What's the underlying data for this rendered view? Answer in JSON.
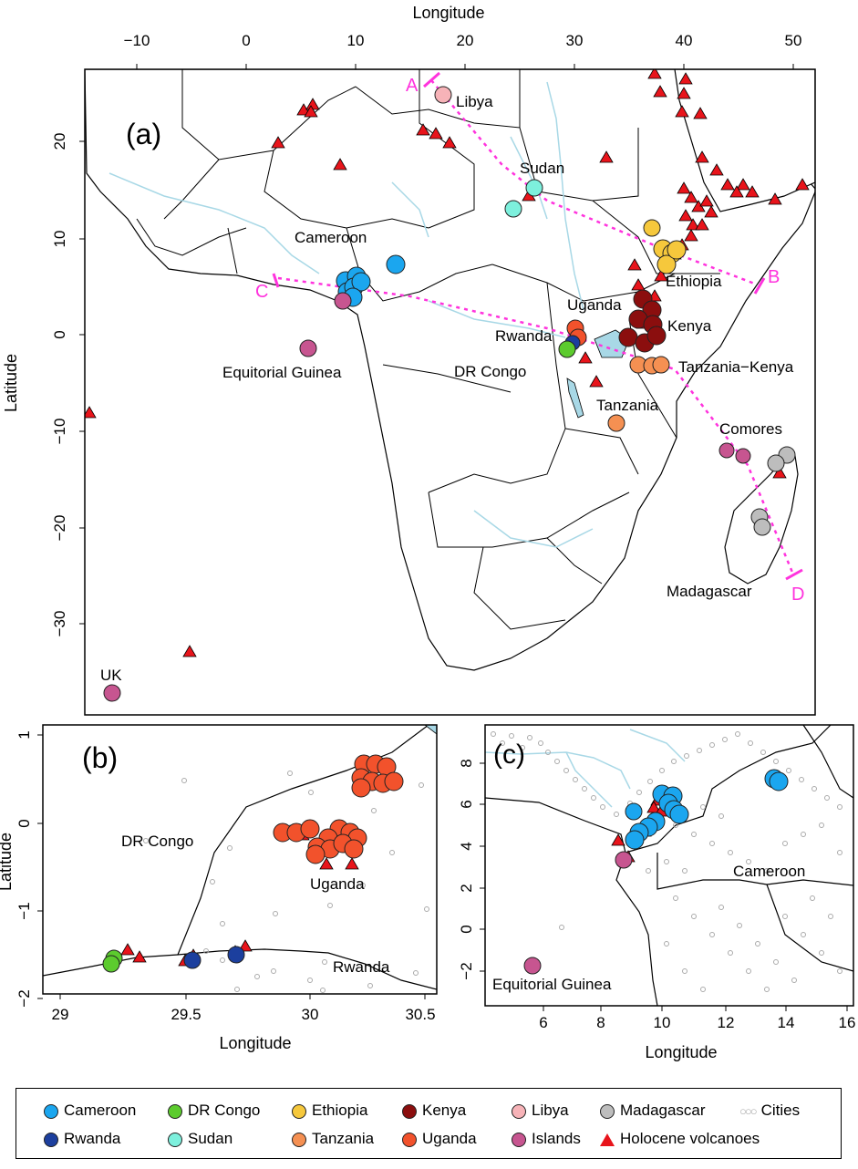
{
  "panel_a": {
    "label": "(a)",
    "x_title": "Longitude",
    "y_title": "Latitude",
    "x_ticks": [
      "−10",
      "0",
      "10",
      "20",
      "30",
      "40",
      "50"
    ],
    "y_ticks": [
      "20",
      "10",
      "0",
      "−10",
      "−20",
      "−30"
    ],
    "place_labels": [
      "Libya",
      "Sudan",
      "Cameroon",
      "Ethiopia",
      "Uganda",
      "Kenya",
      "Rwanda",
      "DR Congo",
      "Equitorial Guinea",
      "Tanzania−Kenya",
      "Tanzania",
      "Comores",
      "Madagascar",
      "UK"
    ],
    "transect_letters": [
      "A",
      "B",
      "C",
      "D"
    ]
  },
  "panel_b": {
    "label": "(b)",
    "x_title": "Longitude",
    "y_title": "Latitude",
    "x_ticks": [
      "29",
      "29.5",
      "30",
      "30.5"
    ],
    "y_ticks": [
      "1",
      "0",
      "−1",
      "−2"
    ],
    "place_labels": [
      "DR Congo",
      "Uganda",
      "Rwanda"
    ]
  },
  "panel_c": {
    "label": "(c)",
    "x_title": "Longitude",
    "x_ticks": [
      "6",
      "8",
      "10",
      "12",
      "14",
      "16"
    ],
    "y_ticks": [
      "8",
      "6",
      "4",
      "2",
      "0",
      "−2"
    ],
    "place_labels": [
      "Cameroon",
      "Equitorial Guinea"
    ]
  },
  "legend": [
    {
      "label": "Cameroon",
      "color": "#1ba6ef",
      "symbol": "circle"
    },
    {
      "label": "DR Congo",
      "color": "#5ccb2e",
      "symbol": "circle"
    },
    {
      "label": "Ethiopia",
      "color": "#f6c83c",
      "symbol": "circle"
    },
    {
      "label": "Kenya",
      "color": "#8b0e0e",
      "symbol": "circle"
    },
    {
      "label": "Libya",
      "color": "#f7b3b8",
      "symbol": "circle"
    },
    {
      "label": "Madagascar",
      "color": "#bdbdbd",
      "symbol": "circle"
    },
    {
      "label": "Cities",
      "color": "#aaaaaa",
      "symbol": "cities"
    },
    {
      "label": "Rwanda",
      "color": "#1c3f9e",
      "symbol": "circle"
    },
    {
      "label": "Sudan",
      "color": "#7df0dd",
      "symbol": "circle"
    },
    {
      "label": "Tanzania",
      "color": "#f59052",
      "symbol": "circle"
    },
    {
      "label": "Uganda",
      "color": "#f2522c",
      "symbol": "circle"
    },
    {
      "label": "Islands",
      "color": "#c75590",
      "symbol": "circle"
    },
    {
      "label": "Holocene volcanoes",
      "color": "#e8141b",
      "symbol": "triangle"
    }
  ]
}
